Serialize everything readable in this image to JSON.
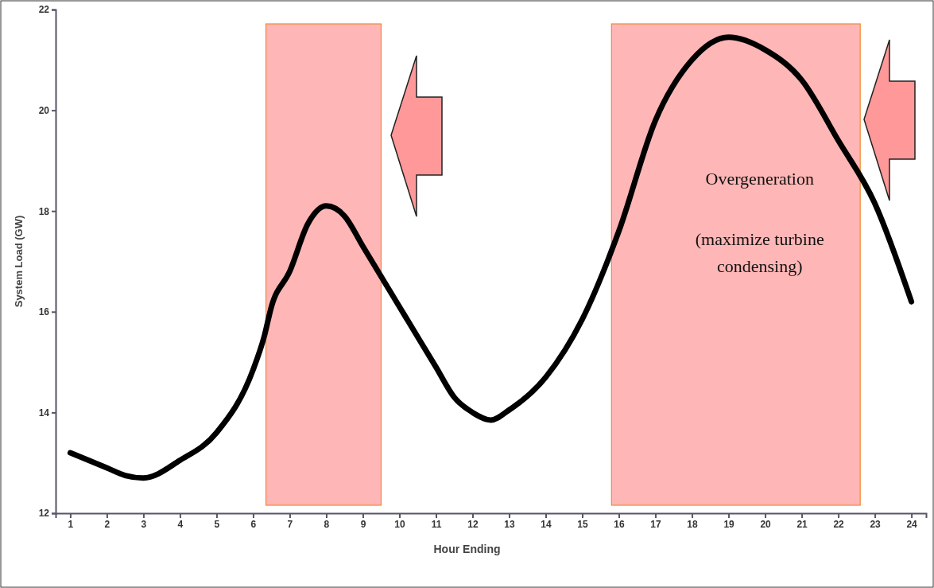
{
  "chart_data": {
    "type": "line",
    "xlabel": "Hour Ending",
    "ylabel": "System Load (GW)",
    "x": [
      1,
      2,
      2.5,
      3,
      4,
      5,
      6,
      6.3,
      6.5,
      7,
      7.5,
      8,
      8.5,
      9,
      10,
      11,
      11.5,
      12,
      12.5,
      13,
      14,
      15,
      16,
      17,
      18,
      19,
      20,
      21,
      22,
      23,
      24
    ],
    "series": [
      {
        "color": "#000000",
        "values": [
          13.2,
          12.9,
          12.75,
          12.7,
          13.05,
          13.6,
          14.85,
          15.5,
          16.1,
          16.8,
          17.75,
          18.1,
          17.9,
          17.3,
          16.1,
          14.9,
          14.3,
          14.0,
          13.85,
          14.05,
          14.7,
          15.85,
          17.6,
          19.8,
          21.0,
          21.45,
          21.2,
          20.6,
          19.4,
          18.15,
          16.2
        ]
      }
    ],
    "xlim": [
      0.6,
      24.4
    ],
    "ylim": [
      12,
      22
    ],
    "xticks": [
      1,
      2,
      3,
      4,
      5,
      6,
      7,
      8,
      9,
      10,
      11,
      12,
      13,
      14,
      15,
      16,
      17,
      18,
      19,
      20,
      21,
      22,
      23,
      24
    ],
    "yticks": [
      12,
      14,
      16,
      18,
      20,
      22
    ],
    "grid": false,
    "marker": "none",
    "line_style": "solid",
    "bands": [
      {
        "axis": "x",
        "from": 6.35,
        "to": 9.5,
        "color": "#ff9a9a"
      },
      {
        "axis": "x",
        "from": 15.8,
        "to": 22.6,
        "color": "#ff9a9a"
      }
    ],
    "annotations": [
      "Overgeneration",
      "(maximize turbine condensing)"
    ]
  }
}
